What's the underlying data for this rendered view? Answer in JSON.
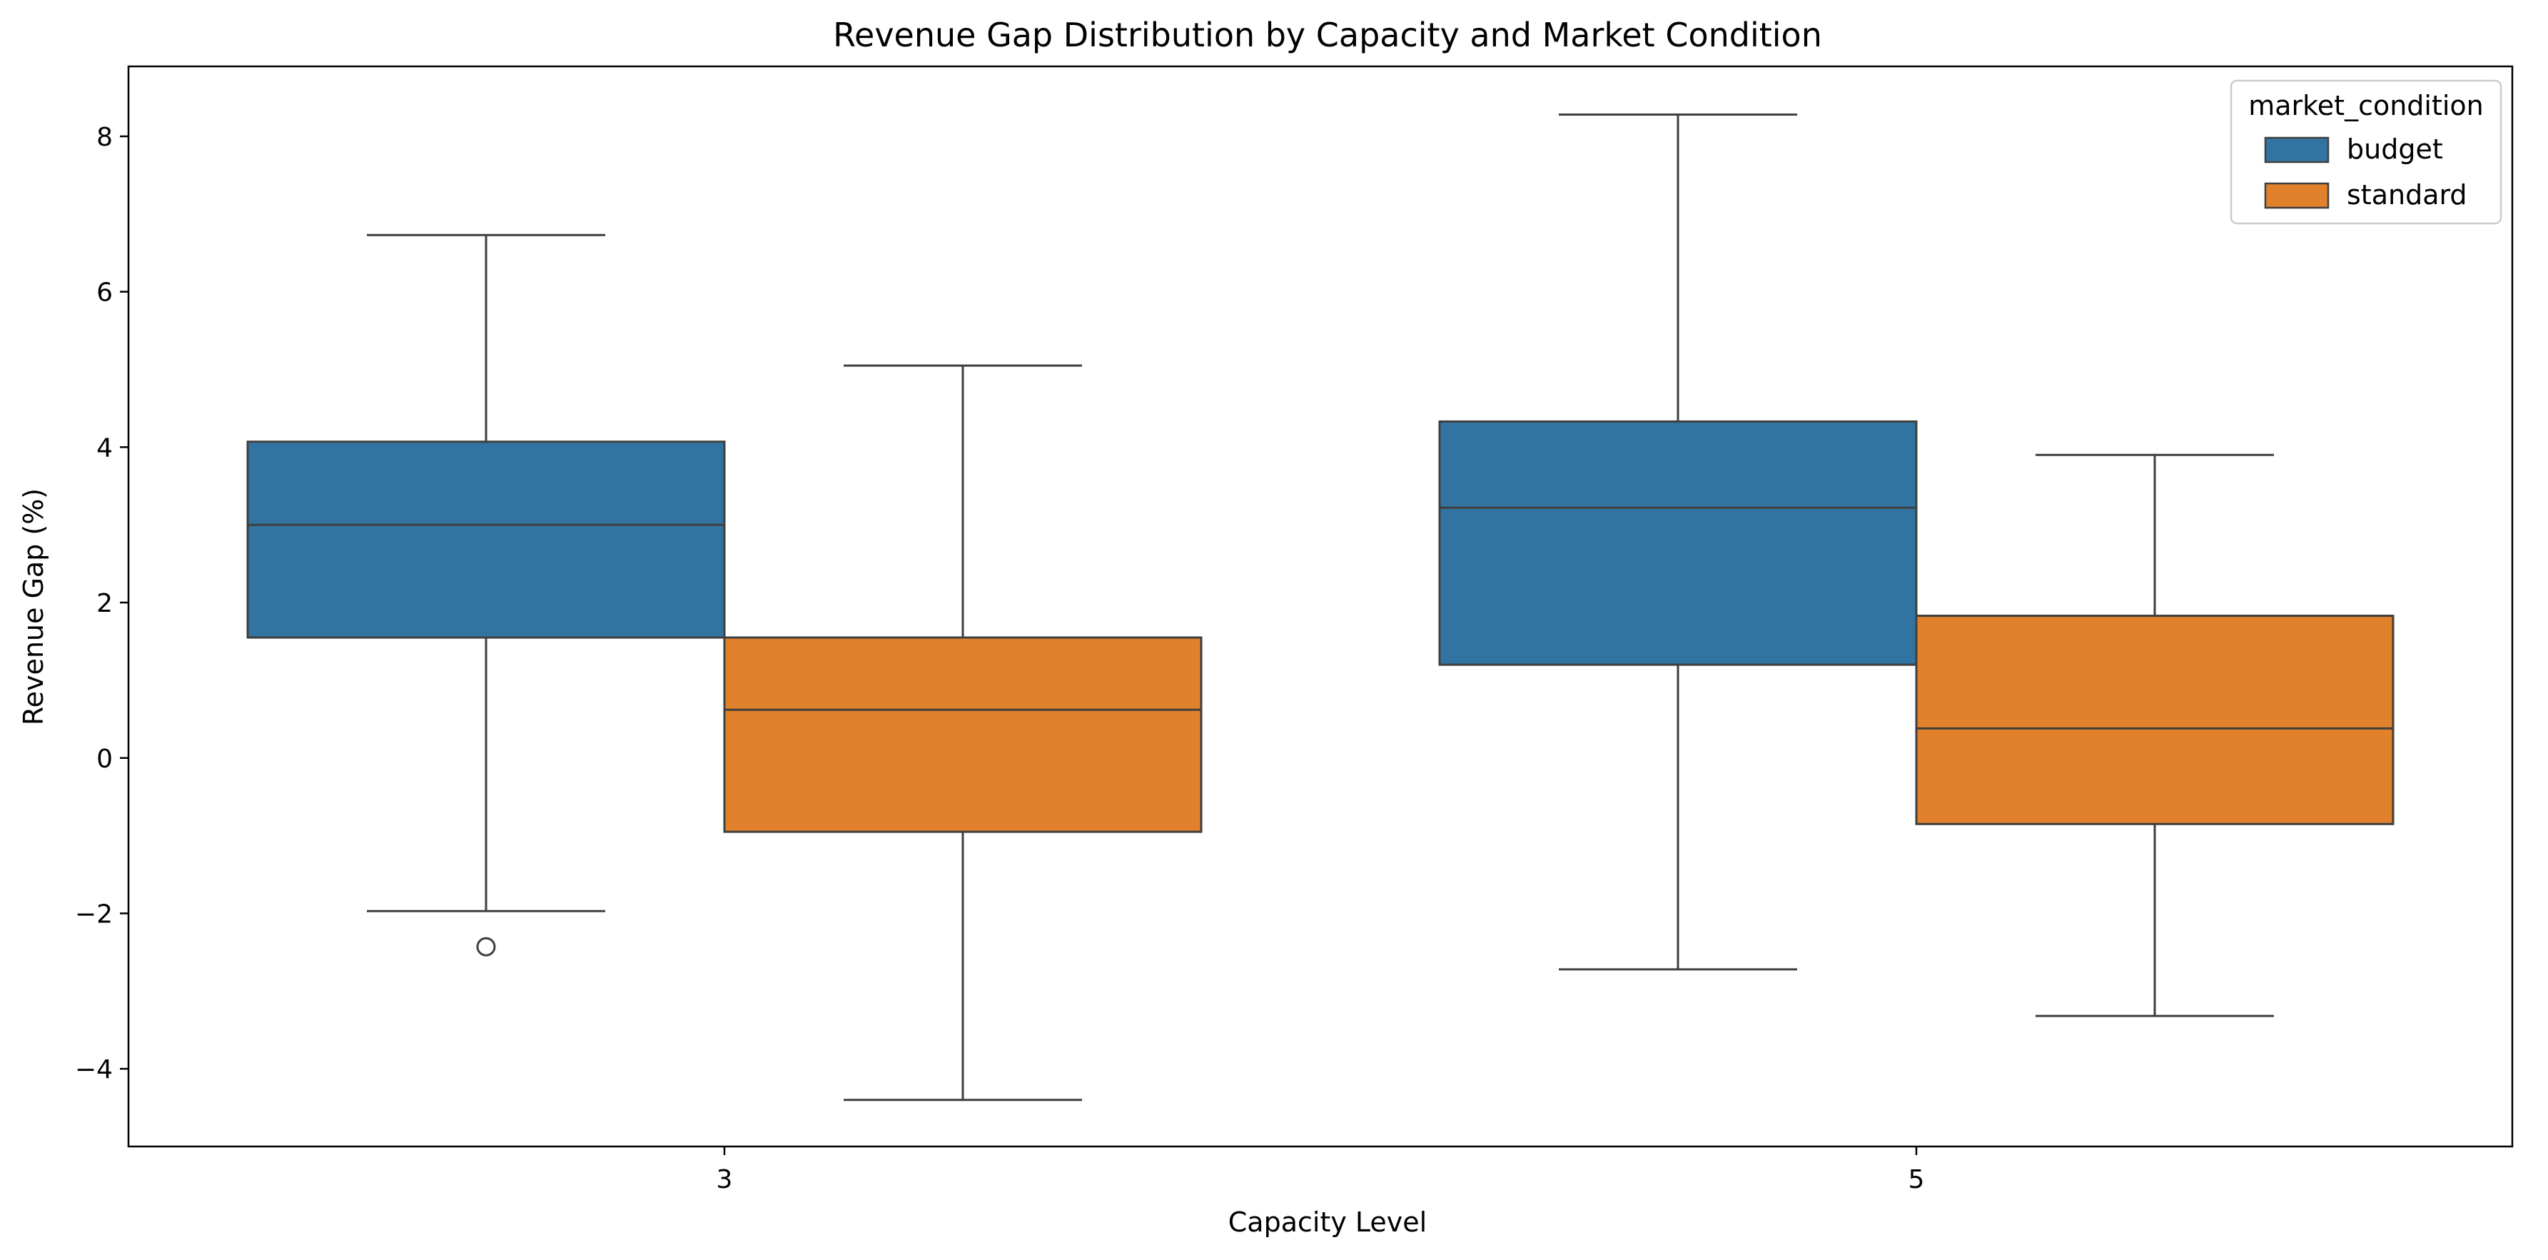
{
  "chart_data": {
    "type": "box",
    "title": "Revenue Gap Distribution by Capacity and Market Condition",
    "xlabel": "Capacity Level",
    "ylabel": "Revenue Gap (%)",
    "categories": [
      "3",
      "5"
    ],
    "ylim": [
      -5.0,
      8.9
    ],
    "yticks": [
      -4,
      -2,
      0,
      2,
      4,
      6,
      8
    ],
    "ytick_labels": [
      "−4",
      "−2",
      "0",
      "2",
      "4",
      "6",
      "8"
    ],
    "grid": false,
    "legend": {
      "title": "market_condition",
      "placement": "top-right",
      "entries": [
        "budget",
        "standard"
      ]
    },
    "series": [
      {
        "name": "budget",
        "color": "#3274a1",
        "boxes": [
          {
            "category": "3",
            "whisker_low": -1.97,
            "q1": 1.55,
            "median": 3.0,
            "q3": 4.07,
            "whisker_high": 6.73,
            "outliers": [
              -2.43
            ]
          },
          {
            "category": "5",
            "whisker_low": -2.72,
            "q1": 1.2,
            "median": 3.22,
            "q3": 4.33,
            "whisker_high": 8.28,
            "outliers": []
          }
        ]
      },
      {
        "name": "standard",
        "color": "#e1812c",
        "boxes": [
          {
            "category": "3",
            "whisker_low": -4.4,
            "q1": -0.95,
            "median": 0.62,
            "q3": 1.55,
            "whisker_high": 5.05,
            "outliers": []
          },
          {
            "category": "5",
            "whisker_low": -3.32,
            "q1": -0.85,
            "median": 0.38,
            "q3": 1.83,
            "whisker_high": 3.9,
            "outliers": []
          }
        ]
      }
    ]
  }
}
